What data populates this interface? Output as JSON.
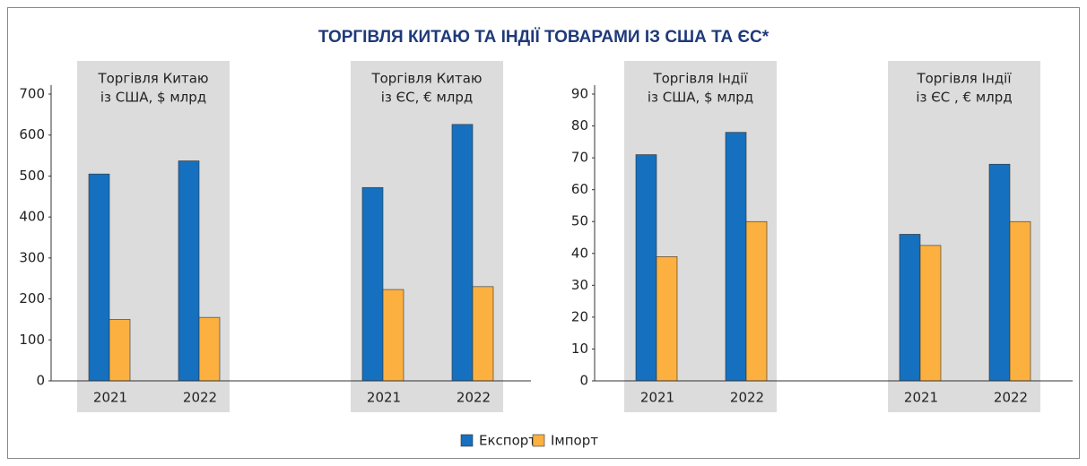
{
  "title": "ТОРГІВЛЯ КИТАЮ ТА ІНДІЇ ТОВАРАМИ ІЗ США ТА ЄС*",
  "series": [
    {
      "name": "Експорт",
      "color": "#1570bf"
    },
    {
      "name": "Імпорт",
      "color": "#fbb040"
    }
  ],
  "chart_data": [
    {
      "type": "bar",
      "ylim": [
        0,
        700
      ],
      "yticks": [
        0,
        100,
        200,
        300,
        400,
        500,
        600,
        700
      ],
      "groups": [
        {
          "label": [
            "Торгівля Китаю",
            "із США, $ млрд"
          ],
          "categories": [
            "2021",
            "2022"
          ],
          "values": [
            [
              505,
              537
            ],
            [
              150,
              155
            ]
          ]
        },
        {
          "label": [
            "Торгівля Китаю",
            "із ЄС, € млрд"
          ],
          "categories": [
            "2021",
            "2022"
          ],
          "values": [
            [
              472,
              626
            ],
            [
              223,
              230
            ]
          ]
        }
      ]
    },
    {
      "type": "bar",
      "ylim": [
        0,
        90
      ],
      "yticks": [
        0,
        10,
        20,
        30,
        40,
        50,
        60,
        70,
        80,
        90
      ],
      "groups": [
        {
          "label": [
            "Торгівля Індії",
            "із США, $ млрд"
          ],
          "categories": [
            "2021",
            "2022"
          ],
          "values": [
            [
              71,
              78
            ],
            [
              39,
              50
            ]
          ]
        },
        {
          "label": [
            "Торгівля Індії",
            "із ЄС , € млрд"
          ],
          "categories": [
            "2021",
            "2022"
          ],
          "values": [
            [
              46,
              68
            ],
            [
              42.5,
              50
            ]
          ]
        }
      ]
    }
  ]
}
